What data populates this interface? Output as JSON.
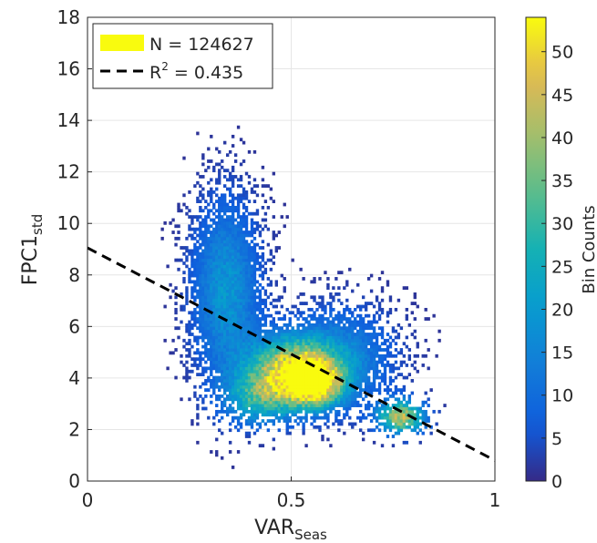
{
  "chart_data": {
    "type": "heatmap",
    "subtype": "2D histogram density scatter with linear fit",
    "xlabel": {
      "main": "VAR",
      "sub": "Seas"
    },
    "ylabel": {
      "main": "FPC1",
      "sub": "std"
    },
    "xlim": [
      0,
      1
    ],
    "ylim": [
      0,
      18
    ],
    "xticks": [
      0,
      0.5,
      1
    ],
    "xtick_labels": [
      "0",
      "0.5",
      "1"
    ],
    "yticks": [
      0,
      2,
      4,
      6,
      8,
      10,
      12,
      14,
      16,
      18
    ],
    "ytick_labels": [
      "0",
      "2",
      "4",
      "6",
      "8",
      "10",
      "12",
      "14",
      "16",
      "18"
    ],
    "grid": true,
    "colormap": "parula",
    "colorbar": {
      "label": "Bin Counts",
      "range": [
        0,
        54
      ],
      "ticks": [
        0,
        5,
        10,
        15,
        20,
        25,
        30,
        35,
        40,
        45,
        50
      ],
      "tick_labels": [
        "0",
        "5",
        "10",
        "15",
        "20",
        "25",
        "30",
        "35",
        "40",
        "45",
        "50"
      ]
    },
    "legend": {
      "placement": "top-left",
      "entries": [
        {
          "label": "N = 124627",
          "marker": "patch",
          "color": "#f9fb0e"
        },
        {
          "label_main": "R",
          "label_sup": "2",
          "label_rest": " = 0.435",
          "marker": "dashed-line",
          "color": "#000000"
        }
      ]
    },
    "fit_line": {
      "x": [
        0,
        1
      ],
      "y": [
        9.05,
        0.8
      ],
      "style": "dashed",
      "color": "#000000"
    },
    "density_clusters": [
      {
        "x": 0.34,
        "y": 7.4,
        "sx": 0.055,
        "sy": 2.3,
        "weight": 0.22,
        "peak": 18
      },
      {
        "x": 0.5,
        "y": 4.3,
        "sx": 0.07,
        "sy": 0.85,
        "weight": 0.28,
        "peak": 46
      },
      {
        "x": 0.56,
        "y": 3.8,
        "sx": 0.045,
        "sy": 0.6,
        "weight": 0.15,
        "peak": 44
      },
      {
        "x": 0.77,
        "y": 2.5,
        "sx": 0.04,
        "sy": 0.45,
        "weight": 0.12,
        "peak": 40
      },
      {
        "x": 0.62,
        "y": 4.8,
        "sx": 0.09,
        "sy": 1.3,
        "weight": 0.15,
        "peak": 14
      },
      {
        "x": 0.42,
        "y": 3.2,
        "sx": 0.06,
        "sy": 0.7,
        "weight": 0.08,
        "peak": 22
      }
    ],
    "observations": 124627,
    "r_squared": 0.435
  }
}
